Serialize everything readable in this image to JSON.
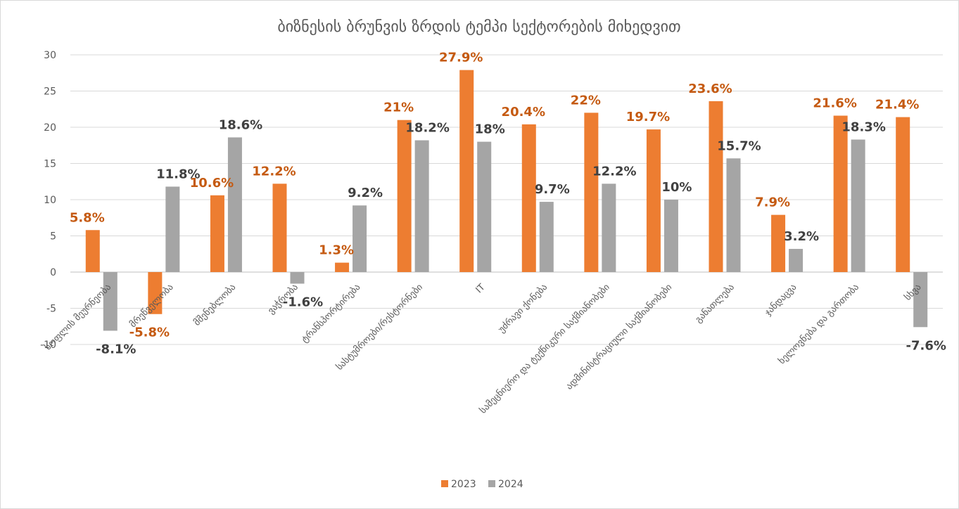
{
  "chart_data": {
    "type": "bar",
    "title": "ბიზნესის ბრუნვის ზრდის ტემპი სექტორების მიხედვით",
    "categories": [
      "სოფლის მეურნეობა",
      "მრეწველობა",
      "მშენებლობა",
      "ვაჭრობა",
      "ტრანსპორტირება",
      "სასტუმროები/რესტორნები",
      "IT",
      "უძრავი ქონება",
      "სამეცნიერო და ტექნიკური საქმიანობები",
      "ადმინისტრაციული საქმიანობები",
      "განათლება",
      "ჯანდაცვა",
      "ხელოვნება და გართობა",
      "სხვა"
    ],
    "series": [
      {
        "name": "2023",
        "color": "#ed7d31",
        "values": [
          5.8,
          -5.8,
          10.6,
          12.2,
          1.3,
          21,
          27.9,
          20.4,
          22,
          19.7,
          23.6,
          7.9,
          21.6,
          21.4
        ],
        "labels": [
          "5.8%",
          "-5.8%",
          "10.6%",
          "12.2%",
          "1.3%",
          "21%",
          "27.9%",
          "20.4%",
          "22%",
          "19.7%",
          "23.6%",
          "7.9%",
          "21.6%",
          "21.4%"
        ]
      },
      {
        "name": "2024",
        "color": "#a5a5a5",
        "values": [
          -8.1,
          11.8,
          18.6,
          -1.6,
          9.2,
          18.2,
          18,
          9.7,
          12.2,
          10,
          15.7,
          3.2,
          18.3,
          -7.6
        ],
        "labels": [
          "-8.1%",
          "11.8%",
          "18.6%",
          "-1.6%",
          "9.2%",
          "18.2%",
          "18%",
          "9.7%",
          "12.2%",
          "10%",
          "15.7%",
          "3.2%",
          "18.3%",
          "-7.6%"
        ]
      }
    ],
    "ylim": [
      -10,
      30
    ],
    "yticks": [
      30,
      25,
      20,
      15,
      10,
      5,
      0,
      -5,
      -10
    ],
    "grid": true,
    "legend": "bottom",
    "label_colors": {
      "2023": "#c55a11",
      "2024": "#404040"
    }
  }
}
